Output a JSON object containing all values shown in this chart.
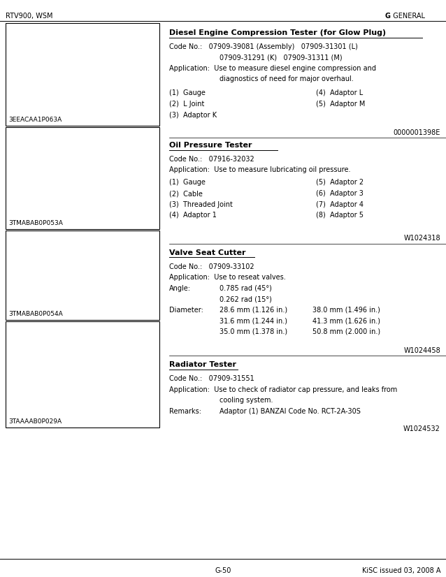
{
  "bg_color": "#ffffff",
  "header_left": "RTV900, WSM",
  "header_right_g": "G",
  "header_right_rest": "  GENERAL",
  "footer_left": "G-50",
  "footer_right": "KiSC issued 03, 2008 A",
  "section1_title": "Diesel Engine Compression Tester (for Glow Plug)",
  "section1_code_line1": "Code No.:   07909-39081 (Assembly)   07909-31301 (L)",
  "section1_code_line2": "07909-31291 (K)   07909-31311 (M)",
  "section1_app_line1": "Application:  Use to measure diesel engine compression and",
  "section1_app_line2": "diagnostics of need for major overhaul.",
  "section1_items_left": [
    "(1)  Gauge",
    "(2)  L Joint",
    "(3)  Adaptor K"
  ],
  "section1_items_right": [
    "(4)  Adaptor L",
    "(5)  Adaptor M"
  ],
  "section1_items_bold_left": [
    false,
    true,
    false
  ],
  "section1_items_bold_right": [
    true,
    true
  ],
  "section1_code_ref": "0000001398E",
  "section1_img_label": "3EEACAA1P063A",
  "section2_title": "Oil Pressure Tester",
  "section2_code": "Code No.:   07916-32032",
  "section2_app": "Application:  Use to measure lubricating oil pressure.",
  "section2_items_left": [
    "(1)  Gauge",
    "(2)  Cable",
    "(3)  Threaded Joint",
    "(4)  Adaptor 1"
  ],
  "section2_items_right": [
    "(5)  Adaptor 2",
    "(6)  Adaptor 3",
    "(7)  Adaptor 4",
    "(8)  Adaptor 5"
  ],
  "section2_items_bold_left": [
    false,
    false,
    false,
    true
  ],
  "section2_items_bold_right": [
    true,
    true,
    true,
    true
  ],
  "section2_code_ref": "W1024318",
  "section2_img_label": "3TMABAB0P053A",
  "section3_title": "Valve Seat Cutter",
  "section3_code": "Code No.:   07909-33102",
  "section3_app": "Application:  Use to reseat valves.",
  "section3_angle_label": "Angle:",
  "section3_angle1": "0.785 rad (45°)",
  "section3_angle2": "0.262 rad (15°)",
  "section3_diam_label": "Diameter:",
  "section3_diam_col1": [
    "28.6 mm (1.126 in.)",
    "31.6 mm (1.244 in.)",
    "35.0 mm (1.378 in.)"
  ],
  "section3_diam_col2": [
    "38.0 mm (1.496 in.)",
    "41.3 mm (1.626 in.)",
    "50.8 mm (2.000 in.)"
  ],
  "section3_code_ref": "W1024458",
  "section3_img_label": "3TMABAB0P054A",
  "section4_title": "Radiator Tester",
  "section4_code": "Code No.:   07909-31551",
  "section4_app_line1": "Application:  Use to check of radiator cap pressure, and leaks from",
  "section4_app_line2": "cooling system.",
  "section4_remarks_label": "Remarks:",
  "section4_remarks_text": "Adaptor (1) BANZAI Code No. RCT-2A-30S",
  "section4_code_ref": "W1024532",
  "section4_img_label": "3TAAAAB0P029A",
  "font_size_header": 7.0,
  "font_size_title": 8.0,
  "font_size_body": 7.0,
  "font_size_ref": 7.0,
  "font_size_img_label": 6.5
}
